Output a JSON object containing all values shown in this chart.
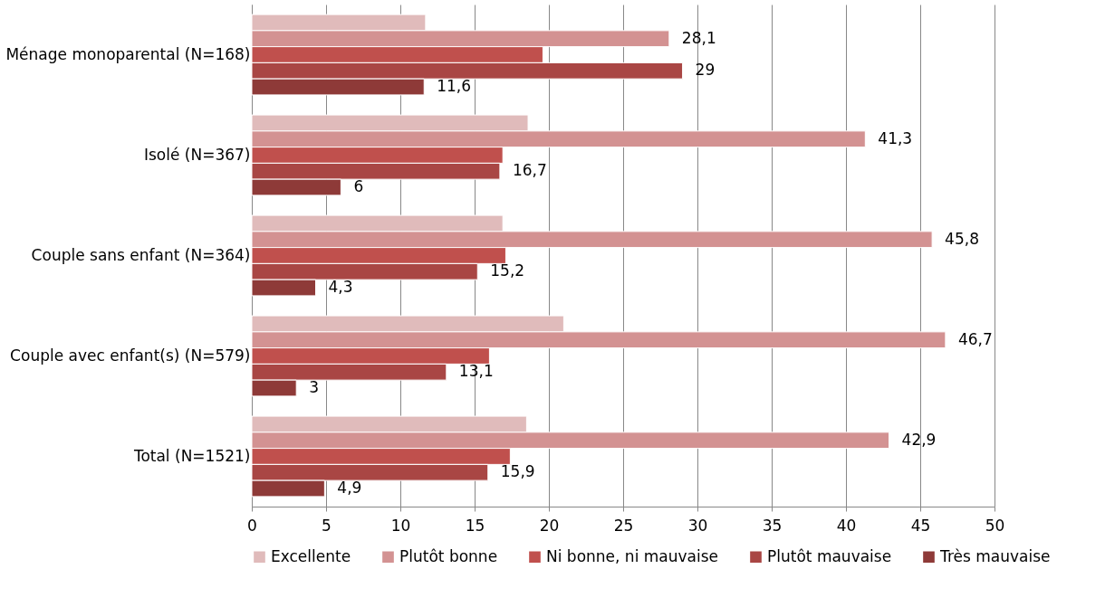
{
  "chart_data": {
    "type": "bar",
    "orientation": "horizontal",
    "categories": [
      "Ménage monoparental (N=168)",
      "Isolé (N=367)",
      "Couple sans enfant (N=364)",
      "Couple avec enfant(s) (N=579)",
      "Total (N=1521)"
    ],
    "series": [
      {
        "name": "Excellente",
        "color": "#e0bbbb",
        "values": [
          11.7,
          18.6,
          16.9,
          21.0,
          18.5
        ]
      },
      {
        "name": "Plutôt bonne",
        "color": "#d39292",
        "values": [
          28.1,
          41.3,
          45.8,
          46.7,
          42.9
        ],
        "value_labels": [
          "28,1",
          "41,3",
          "45,8",
          "46,7",
          "42,9"
        ]
      },
      {
        "name": "Ni bonne, ni mauvaise",
        "color": "#c0504d",
        "values": [
          19.6,
          16.9,
          17.1,
          16.0,
          17.4
        ]
      },
      {
        "name": "Plutôt mauvaise",
        "color": "#a94644",
        "values": [
          29,
          16.7,
          15.2,
          13.1,
          15.9
        ],
        "value_labels": [
          "29",
          "16,7",
          "15,2",
          "13,1",
          "15,9"
        ]
      },
      {
        "name": "Très mauvaise",
        "color": "#8e3a38",
        "values": [
          11.6,
          6,
          4.3,
          3,
          4.9
        ],
        "value_labels": [
          "11,6",
          "6",
          "4,3",
          "3",
          "4,9"
        ]
      }
    ],
    "xlim": [
      0,
      50
    ],
    "xticks": [
      0,
      5,
      10,
      15,
      20,
      25,
      30,
      35,
      40,
      45,
      50
    ],
    "grid": "x",
    "legend": "bottom"
  }
}
